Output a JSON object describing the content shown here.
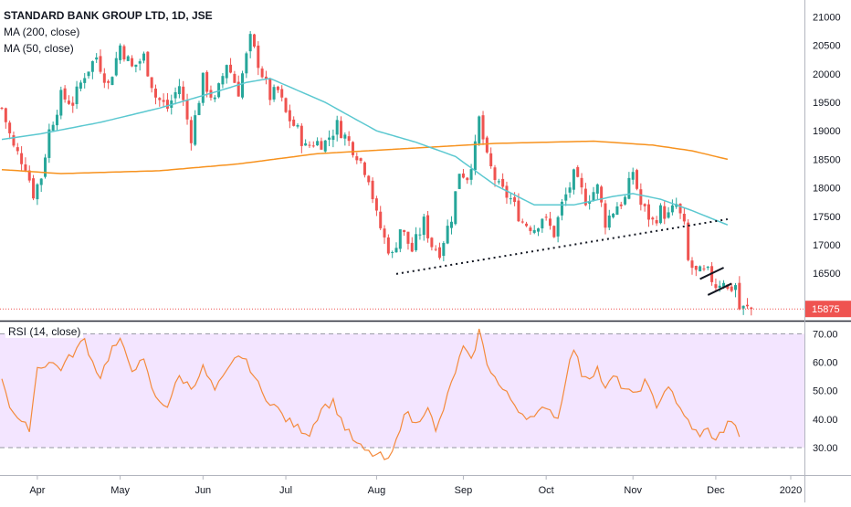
{
  "symbol_title": "STANDARD BANK GROUP LTD, 1D, JSE",
  "indicators": [
    {
      "label": "MA (200, close)",
      "color": "#f57f17"
    },
    {
      "label": "MA (50, close)",
      "color": "#4fc3c7"
    }
  ],
  "rsi_label": "RSI (14, close)",
  "last_price_label": "15875",
  "colors": {
    "up": "#26a69a",
    "down": "#ef5350",
    "ma200": "#f7921e",
    "ma50": "#5bc8d0",
    "rsi": "#f48a3c",
    "rsi_band": "#f3e5ff",
    "last_price": "#ef5350"
  },
  "chart_data": [
    {
      "type": "candlestick",
      "title": "STANDARD BANK GROUP LTD, 1D, JSE",
      "ylim": [
        15750,
        21200
      ],
      "y_ticks": [
        16500,
        17000,
        17500,
        18000,
        18500,
        19000,
        19500,
        20000,
        20500,
        21000
      ],
      "x_ticks": [
        "Apr",
        "May",
        "Jun",
        "Jul",
        "Aug",
        "Sep",
        "Oct",
        "Nov",
        "Dec",
        "2020"
      ],
      "x_tick_index": [
        9,
        30,
        51,
        72,
        95,
        117,
        138,
        160,
        181,
        200
      ],
      "num_bars": 191,
      "price_anchors": [
        [
          0,
          19400
        ],
        [
          3,
          18700
        ],
        [
          6,
          18400
        ],
        [
          8,
          17900
        ],
        [
          10,
          18200
        ],
        [
          12,
          19000
        ],
        [
          15,
          19600
        ],
        [
          18,
          19500
        ],
        [
          21,
          20000
        ],
        [
          24,
          20300
        ],
        [
          27,
          19800
        ],
        [
          30,
          20500
        ],
        [
          33,
          20100
        ],
        [
          36,
          20300
        ],
        [
          39,
          19600
        ],
        [
          42,
          19400
        ],
        [
          45,
          19800
        ],
        [
          48,
          18900
        ],
        [
          51,
          19900
        ],
        [
          54,
          19500
        ],
        [
          57,
          20200
        ],
        [
          60,
          19700
        ],
        [
          63,
          20600
        ],
        [
          66,
          20000
        ],
        [
          68,
          19600
        ],
        [
          70,
          19700
        ],
        [
          72,
          19300
        ],
        [
          75,
          19000
        ],
        [
          77,
          18700
        ],
        [
          79,
          18800
        ],
        [
          82,
          18800
        ],
        [
          85,
          19100
        ],
        [
          87,
          18900
        ],
        [
          90,
          18600
        ],
        [
          93,
          18200
        ],
        [
          95,
          17500
        ],
        [
          97,
          17100
        ],
        [
          99,
          16800
        ],
        [
          101,
          17300
        ],
        [
          104,
          16900
        ],
        [
          107,
          17400
        ],
        [
          109,
          17000
        ],
        [
          111,
          16900
        ],
        [
          114,
          17500
        ],
        [
          116,
          18300
        ],
        [
          118,
          18200
        ],
        [
          120,
          18700
        ],
        [
          121,
          19200
        ],
        [
          123,
          18500
        ],
        [
          126,
          18000
        ],
        [
          129,
          17800
        ],
        [
          132,
          17400
        ],
        [
          135,
          17300
        ],
        [
          137,
          17500
        ],
        [
          140,
          17200
        ],
        [
          142,
          17700
        ],
        [
          145,
          18200
        ],
        [
          148,
          17800
        ],
        [
          151,
          18000
        ],
        [
          153,
          17400
        ],
        [
          156,
          17700
        ],
        [
          158,
          17800
        ],
        [
          160,
          18300
        ],
        [
          162,
          17700
        ],
        [
          165,
          17400
        ],
        [
          167,
          17600
        ],
        [
          169,
          17500
        ],
        [
          171,
          17700
        ],
        [
          173,
          17300
        ],
        [
          174,
          16700
        ],
        [
          176,
          16500
        ],
        [
          179,
          16500
        ],
        [
          181,
          16300
        ],
        [
          183,
          16400
        ],
        [
          184,
          16200
        ],
        [
          186,
          16300
        ],
        [
          187,
          15875
        ]
      ],
      "series": [
        {
          "name": "MA (200, close)",
          "values": [
            [
              0,
              18320
            ],
            [
              15,
              18250
            ],
            [
              40,
              18300
            ],
            [
              60,
              18420
            ],
            [
              80,
              18600
            ],
            [
              100,
              18680
            ],
            [
              125,
              18780
            ],
            [
              150,
              18820
            ],
            [
              165,
              18750
            ],
            [
              175,
              18650
            ],
            [
              184,
              18500
            ]
          ]
        },
        {
          "name": "MA (50, close)",
          "values": [
            [
              0,
              18850
            ],
            [
              10,
              18950
            ],
            [
              25,
              19150
            ],
            [
              40,
              19400
            ],
            [
              55,
              19700
            ],
            [
              62,
              19850
            ],
            [
              68,
              19920
            ],
            [
              72,
              19800
            ],
            [
              82,
              19500
            ],
            [
              95,
              19000
            ],
            [
              105,
              18800
            ],
            [
              115,
              18550
            ],
            [
              125,
              18050
            ],
            [
              135,
              17700
            ],
            [
              145,
              17700
            ],
            [
              155,
              17850
            ],
            [
              160,
              17900
            ],
            [
              167,
              17800
            ],
            [
              175,
              17600
            ],
            [
              184,
              17350
            ]
          ]
        }
      ],
      "trendlines": [
        {
          "style": "dotted",
          "points": [
            [
              100,
              16490
            ],
            [
              184,
              17450
            ]
          ]
        },
        {
          "style": "solid",
          "points": [
            [
              177,
              16400
            ],
            [
              183,
              16600
            ]
          ]
        },
        {
          "style": "solid",
          "points": [
            [
              179,
              16120
            ],
            [
              185,
              16320
            ]
          ]
        }
      ]
    },
    {
      "type": "line",
      "title": "RSI (14, close)",
      "ylim": [
        21,
        73
      ],
      "y_ticks": [
        30,
        40,
        50,
        60,
        70
      ],
      "y_tick_labels": [
        "30.00",
        "40.00",
        "50.00",
        "60.00",
        "70.00"
      ],
      "band": [
        30,
        70
      ],
      "anchors": [
        [
          0,
          55
        ],
        [
          2,
          45
        ],
        [
          5,
          38
        ],
        [
          7,
          37
        ],
        [
          9,
          58
        ],
        [
          12,
          60
        ],
        [
          15,
          58
        ],
        [
          18,
          63
        ],
        [
          21,
          68
        ],
        [
          23,
          60
        ],
        [
          25,
          55
        ],
        [
          28,
          65
        ],
        [
          30,
          67
        ],
        [
          33,
          58
        ],
        [
          36,
          60
        ],
        [
          39,
          47
        ],
        [
          42,
          45
        ],
        [
          45,
          55
        ],
        [
          48,
          51
        ],
        [
          51,
          58
        ],
        [
          54,
          50
        ],
        [
          57,
          56
        ],
        [
          60,
          63
        ],
        [
          63,
          58
        ],
        [
          66,
          49
        ],
        [
          69,
          45
        ],
        [
          72,
          40
        ],
        [
          75,
          37
        ],
        [
          78,
          35
        ],
        [
          81,
          44
        ],
        [
          84,
          46
        ],
        [
          87,
          37
        ],
        [
          90,
          31
        ],
        [
          93,
          28
        ],
        [
          96,
          27
        ],
        [
          98,
          25
        ],
        [
          100,
          32
        ],
        [
          102,
          43
        ],
        [
          105,
          38
        ],
        [
          108,
          45
        ],
        [
          110,
          35
        ],
        [
          113,
          48
        ],
        [
          115,
          57
        ],
        [
          117,
          65
        ],
        [
          119,
          60
        ],
        [
          121,
          71
        ],
        [
          123,
          60
        ],
        [
          126,
          52
        ],
        [
          129,
          47
        ],
        [
          132,
          42
        ],
        [
          135,
          40
        ],
        [
          138,
          45
        ],
        [
          141,
          40
        ],
        [
          143,
          55
        ],
        [
          145,
          65
        ],
        [
          147,
          56
        ],
        [
          149,
          55
        ],
        [
          151,
          58
        ],
        [
          153,
          50
        ],
        [
          155,
          55
        ],
        [
          157,
          52
        ],
        [
          160,
          48
        ],
        [
          163,
          53
        ],
        [
          166,
          45
        ],
        [
          169,
          52
        ],
        [
          171,
          45
        ],
        [
          173,
          42
        ],
        [
          175,
          36
        ],
        [
          177,
          35
        ],
        [
          179,
          36
        ],
        [
          181,
          33
        ],
        [
          183,
          36
        ],
        [
          185,
          40
        ],
        [
          187,
          33
        ]
      ]
    }
  ]
}
